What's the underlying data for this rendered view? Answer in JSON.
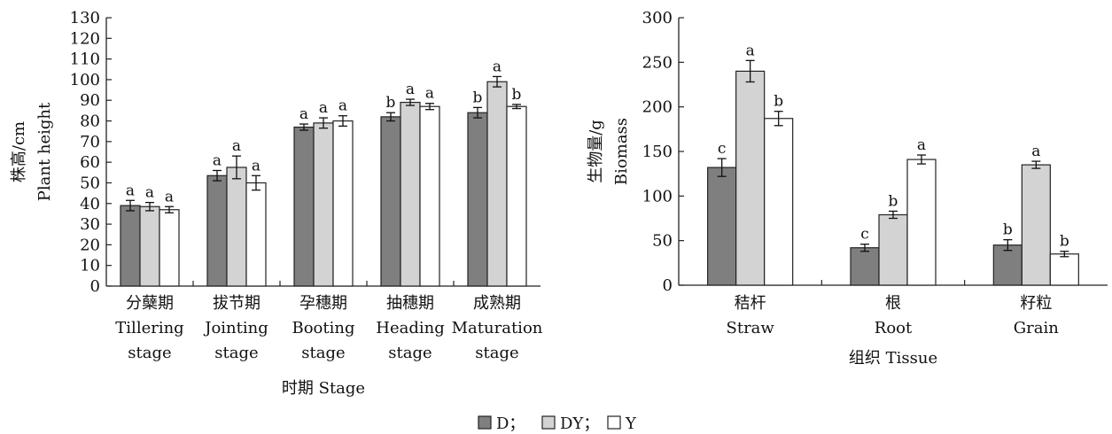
{
  "chart_data": [
    {
      "type": "bar",
      "ylabel_cn": "株高/cm",
      "ylabel_en": "Plant height",
      "xlabel": "时期 Stage",
      "ylim": [
        0,
        130
      ],
      "yticks": [
        0,
        10,
        20,
        30,
        40,
        50,
        60,
        70,
        80,
        90,
        100,
        110,
        120,
        130
      ],
      "categories": [
        {
          "cn": "分蘖期",
          "en1": "Tillering",
          "en2": "stage"
        },
        {
          "cn": "拔节期",
          "en1": "Jointing",
          "en2": "stage"
        },
        {
          "cn": "孕穗期",
          "en1": "Booting",
          "en2": "stage"
        },
        {
          "cn": "抽穗期",
          "en1": "Heading",
          "en2": "stage"
        },
        {
          "cn": "成熟期",
          "en1": "Maturation",
          "en2": "stage"
        }
      ],
      "series": [
        {
          "name": "D",
          "values": [
            39,
            53.5,
            77,
            82,
            84
          ],
          "errors": [
            2.5,
            2.5,
            1.5,
            2,
            2.5
          ],
          "letters": [
            "a",
            "a",
            "a",
            "b",
            "b"
          ]
        },
        {
          "name": "DY",
          "values": [
            38.5,
            57.5,
            79,
            89,
            99
          ],
          "errors": [
            2,
            5.5,
            2.5,
            1.5,
            2.5
          ],
          "letters": [
            "a",
            "a",
            "a",
            "a",
            "a"
          ]
        },
        {
          "name": "Y",
          "values": [
            37,
            50,
            80,
            87,
            87
          ],
          "errors": [
            1.5,
            3.5,
            2.5,
            1.5,
            1
          ],
          "letters": [
            "a",
            "a",
            "a",
            "a",
            "b"
          ]
        }
      ]
    },
    {
      "type": "bar",
      "ylabel_cn": "生物量/g",
      "ylabel_en": "Biomass",
      "xlabel": "组织 Tissue",
      "ylim": [
        0,
        300
      ],
      "yticks": [
        0,
        50,
        100,
        150,
        200,
        250,
        300
      ],
      "categories": [
        {
          "cn": "秸杆",
          "en1": "Straw",
          "en2": ""
        },
        {
          "cn": "根",
          "en1": "Root",
          "en2": ""
        },
        {
          "cn": "籽粒",
          "en1": "Grain",
          "en2": ""
        }
      ],
      "series": [
        {
          "name": "D",
          "values": [
            132,
            42,
            45
          ],
          "errors": [
            10,
            4,
            6
          ],
          "letters": [
            "c",
            "c",
            "b"
          ]
        },
        {
          "name": "DY",
          "values": [
            240,
            79,
            135
          ],
          "errors": [
            12,
            4,
            4
          ],
          "letters": [
            "a",
            "b",
            "a"
          ]
        },
        {
          "name": "Y",
          "values": [
            187,
            141,
            35
          ],
          "errors": [
            8,
            5,
            3
          ],
          "letters": [
            "b",
            "a",
            "b"
          ]
        }
      ]
    }
  ],
  "legend": {
    "items": [
      {
        "label": "D；",
        "color": "#7f7f7f"
      },
      {
        "label": "DY；",
        "color": "#d3d3d3"
      },
      {
        "label": "Y",
        "color": "#ffffff"
      }
    ]
  }
}
